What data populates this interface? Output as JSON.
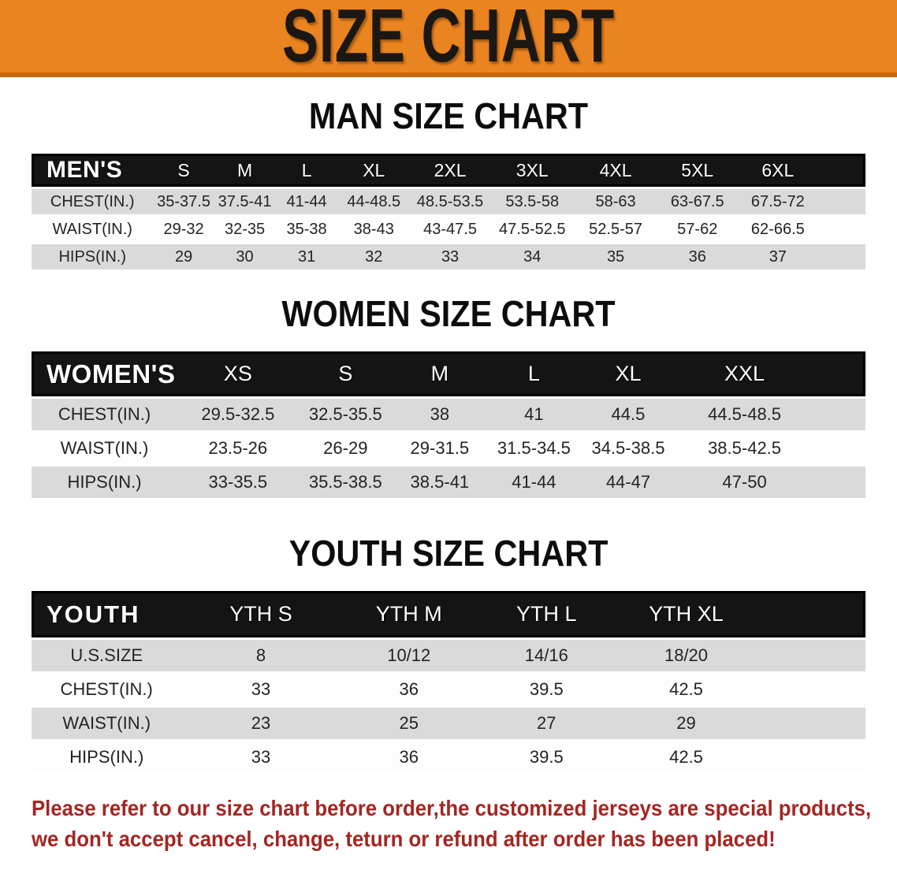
{
  "banner": {
    "title": "SIZE CHART",
    "bg_color": "#EA8420",
    "text_color": "#1b1713"
  },
  "sections": [
    {
      "title": "MAN SIZE CHART",
      "header_label": "MEN'S",
      "columns": [
        "S",
        "M",
        "L",
        "XL",
        "2XL",
        "3XL",
        "4XL",
        "5XL",
        "6XL"
      ],
      "rows": [
        {
          "label": "CHEST(IN.)",
          "values": [
            "35-37.5",
            "37.5-41",
            "41-44",
            "44-48.5",
            "48.5-53.5",
            "53.5-58",
            "58-63",
            "63-67.5",
            "67.5-72"
          ]
        },
        {
          "label": "WAIST(IN.)",
          "values": [
            "29-32",
            "32-35",
            "35-38",
            "38-43",
            "43-47.5",
            "47.5-52.5",
            "52.5-57",
            "57-62",
            "62-66.5"
          ]
        },
        {
          "label": "HIPS(IN.)",
          "values": [
            "29",
            "30",
            "31",
            "32",
            "33",
            "34",
            "35",
            "36",
            "37"
          ]
        }
      ]
    },
    {
      "title": "WOMEN SIZE CHART",
      "header_label": "WOMEN'S",
      "columns": [
        "XS",
        "S",
        "M",
        "L",
        "XL",
        "XXL"
      ],
      "rows": [
        {
          "label": "CHEST(IN.)",
          "values": [
            "29.5-32.5",
            "32.5-35.5",
            "38",
            "41",
            "44.5",
            "44.5-48.5"
          ]
        },
        {
          "label": "WAIST(IN.)",
          "values": [
            "23.5-26",
            "26-29",
            "29-31.5",
            "31.5-34.5",
            "34.5-38.5",
            "38.5-42.5"
          ]
        },
        {
          "label": "HIPS(IN.)",
          "values": [
            "33-35.5",
            "35.5-38.5",
            "38.5-41",
            "41-44",
            "44-47",
            "47-50"
          ]
        }
      ]
    },
    {
      "title": "YOUTH SIZE CHART",
      "header_label": "YOUTH",
      "columns": [
        "YTH S",
        "YTH M",
        "YTH L",
        "YTH XL"
      ],
      "rows": [
        {
          "label": "U.S.SIZE",
          "values": [
            "8",
            "10/12",
            "14/16",
            "18/20"
          ]
        },
        {
          "label": "CHEST(IN.)",
          "values": [
            "33",
            "36",
            "39.5",
            "42.5"
          ]
        },
        {
          "label": "WAIST(IN.)",
          "values": [
            "23",
            "25",
            "27",
            "29"
          ]
        },
        {
          "label": "HIPS(IN.)",
          "values": [
            "33",
            "36",
            "39.5",
            "42.5"
          ]
        }
      ]
    }
  ],
  "table_colors": {
    "header_bg": "#141414",
    "header_text": "#ffffff",
    "stripe_gray": "#DADADA",
    "stripe_white": "#FDFDFD"
  },
  "disclaimer": {
    "line1": "Please refer to our size chart before order,the customized jerseys are special products,",
    "line2": "we don't accept cancel, change, teturn or refund after order has been placed!",
    "color": "#A32622"
  }
}
